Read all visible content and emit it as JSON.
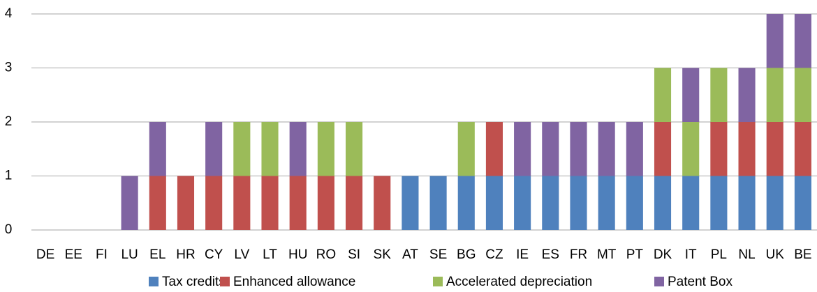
{
  "chart_data": {
    "type": "stacked_bar",
    "categories": [
      "DE",
      "EE",
      "FI",
      "LU",
      "EL",
      "HR",
      "CY",
      "LV",
      "LT",
      "HU",
      "RO",
      "SI",
      "SK",
      "AT",
      "SE",
      "BG",
      "CZ",
      "IE",
      "ES",
      "FR",
      "MT",
      "PT",
      "DK",
      "IT",
      "PL",
      "NL",
      "UK",
      "BE"
    ],
    "series": [
      {
        "name": "Tax credits",
        "color": "#4f81bd",
        "values": [
          0,
          0,
          0,
          0,
          0,
          0,
          0,
          0,
          0,
          0,
          0,
          0,
          0,
          1,
          1,
          1,
          1,
          1,
          1,
          1,
          1,
          1,
          1,
          1,
          1,
          1,
          1,
          1
        ]
      },
      {
        "name": "Enhanced allowance",
        "color": "#c0504d",
        "values": [
          0,
          0,
          0,
          0,
          1,
          1,
          1,
          1,
          1,
          1,
          1,
          1,
          1,
          0,
          0,
          0,
          1,
          0,
          0,
          0,
          0,
          0,
          1,
          0,
          1,
          1,
          1,
          1
        ]
      },
      {
        "name": "Accelerated depreciation",
        "color": "#9bbb59",
        "values": [
          0,
          0,
          0,
          0,
          0,
          0,
          0,
          1,
          1,
          0,
          1,
          1,
          0,
          0,
          0,
          1,
          0,
          0,
          0,
          0,
          0,
          0,
          1,
          1,
          1,
          0,
          1,
          1
        ]
      },
      {
        "name": "Patent Box",
        "color": "#8064a2",
        "values": [
          0,
          0,
          0,
          1,
          1,
          0,
          1,
          0,
          0,
          1,
          0,
          0,
          0,
          0,
          0,
          0,
          0,
          1,
          1,
          1,
          1,
          1,
          0,
          1,
          0,
          1,
          1,
          1
        ]
      }
    ],
    "ylim": [
      0,
      4
    ],
    "yticks": [
      0,
      1,
      2,
      3,
      4
    ],
    "grid": true,
    "legend": "bottom"
  }
}
